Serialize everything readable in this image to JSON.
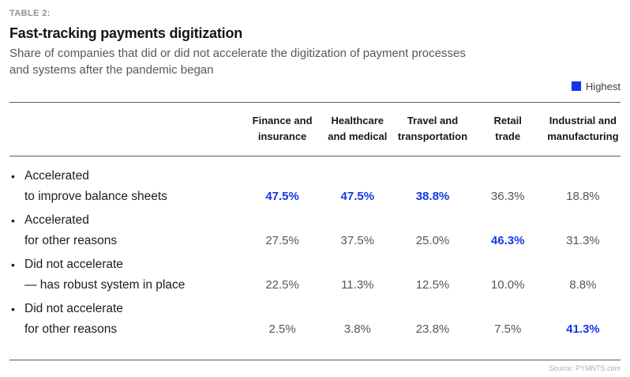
{
  "header": {
    "eyebrow": "TABLE 2:",
    "title": "Fast-tracking payments digitization",
    "subtitle_line1": "Share of companies that did or did not accelerate the digitization of payment processes",
    "subtitle_line2": "and systems after the pandemic began",
    "legend_label": "Highest",
    "accent_color": "#1438e8"
  },
  "glyphs": {
    "bullet": "•"
  },
  "table": {
    "columns": [
      {
        "line1": "Finance and",
        "line2": "insurance"
      },
      {
        "line1": "Healthcare",
        "line2": "and medical"
      },
      {
        "line1": "Travel and",
        "line2": "transportation"
      },
      {
        "line1": "Retail",
        "line2": "trade"
      },
      {
        "line1": "Industrial and",
        "line2": "manufacturing"
      }
    ],
    "rows": [
      {
        "label_line1": "Accelerated",
        "label_line2": "to improve balance sheets",
        "values": [
          {
            "text": "47.5%",
            "highlight": true
          },
          {
            "text": "47.5%",
            "highlight": true
          },
          {
            "text": "38.8%",
            "highlight": true
          },
          {
            "text": "36.3%",
            "highlight": false
          },
          {
            "text": "18.8%",
            "highlight": false
          }
        ]
      },
      {
        "label_line1": "Accelerated",
        "label_line2": "for other reasons",
        "values": [
          {
            "text": "27.5%",
            "highlight": false
          },
          {
            "text": "37.5%",
            "highlight": false
          },
          {
            "text": "25.0%",
            "highlight": false
          },
          {
            "text": "46.3%",
            "highlight": true
          },
          {
            "text": "31.3%",
            "highlight": false
          }
        ]
      },
      {
        "label_line1": "Did not accelerate",
        "label_line2": "— has robust system in place",
        "values": [
          {
            "text": "22.5%",
            "highlight": false
          },
          {
            "text": "11.3%",
            "highlight": false
          },
          {
            "text": "12.5%",
            "highlight": false
          },
          {
            "text": "10.0%",
            "highlight": false
          },
          {
            "text": "8.8%",
            "highlight": false
          }
        ]
      },
      {
        "label_line1": "Did not accelerate",
        "label_line2": "for other reasons",
        "values": [
          {
            "text": "2.5%",
            "highlight": false
          },
          {
            "text": "3.8%",
            "highlight": false
          },
          {
            "text": "23.8%",
            "highlight": false
          },
          {
            "text": "7.5%",
            "highlight": false
          },
          {
            "text": "41.3%",
            "highlight": true
          }
        ]
      }
    ]
  },
  "footer": {
    "source": "Source: PYMNTS.com"
  },
  "chart_data": {
    "type": "table",
    "title": "Fast-tracking payments digitization",
    "subtitle": "Share of companies that did or did not accelerate the digitization of payment processes and systems after the pandemic began",
    "table_label": "TABLE 2:",
    "columns": [
      "Finance and insurance",
      "Healthcare and medical",
      "Travel and transportation",
      "Retail trade",
      "Industrial and manufacturing"
    ],
    "rows": [
      {
        "label": "Accelerated to improve balance sheets",
        "values_pct": [
          47.5,
          47.5,
          38.8,
          36.3,
          18.8
        ]
      },
      {
        "label": "Accelerated for other reasons",
        "values_pct": [
          27.5,
          37.5,
          25.0,
          46.3,
          31.3
        ]
      },
      {
        "label": "Did not accelerate — has robust system in place",
        "values_pct": [
          22.5,
          11.3,
          12.5,
          10.0,
          8.8
        ]
      },
      {
        "label": "Did not accelerate for other reasons",
        "values_pct": [
          2.5,
          3.8,
          23.8,
          7.5,
          41.3
        ]
      }
    ],
    "legend": [
      "Highest"
    ],
    "highlight_rule": "highest value in each column rendered bold blue",
    "highlight_color": "#1438e8",
    "source": "Source: PYMNTS.com"
  }
}
